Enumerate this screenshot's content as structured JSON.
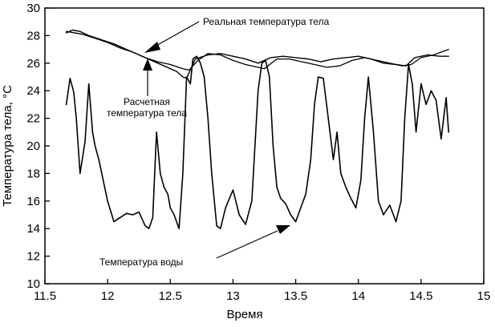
{
  "chart_data": {
    "type": "line",
    "xlabel": "Время",
    "ylabel": "Температура тела, °C",
    "xlim": [
      11.5,
      15
    ],
    "ylim": [
      10,
      30
    ],
    "xticks": [
      "11.5",
      "12",
      "12.5",
      "13",
      "13.5",
      "14",
      "14.5",
      "15"
    ],
    "yticks": [
      "10",
      "12",
      "14",
      "16",
      "18",
      "20",
      "22",
      "24",
      "26",
      "28",
      "30"
    ],
    "grid": false,
    "annotations": {
      "real": "Реальная температура тела",
      "calc_line1": "Расчетная",
      "calc_line2": "температура тела",
      "water": "Температура воды"
    },
    "series": [
      {
        "key": "real",
        "x": [
          11.67,
          11.72,
          11.78,
          11.85,
          11.95,
          12.05,
          12.15,
          12.25,
          12.3,
          12.35,
          12.4,
          12.45,
          12.55,
          12.6,
          12.63,
          12.7,
          12.8,
          12.9,
          13.0,
          13.1,
          13.2,
          13.3,
          13.4,
          13.5,
          13.6,
          13.7,
          13.8,
          13.9,
          14.0,
          14.1,
          14.2,
          14.3,
          14.38,
          14.45,
          14.55,
          14.65,
          14.72
        ],
        "y": [
          28.2,
          28.4,
          28.3,
          28.0,
          27.7,
          27.4,
          27.0,
          26.6,
          26.4,
          26.2,
          26.0,
          25.8,
          25.4,
          25.0,
          24.9,
          26.3,
          26.6,
          26.7,
          26.5,
          26.3,
          26.0,
          26.4,
          26.5,
          26.4,
          26.3,
          26.1,
          26.3,
          26.4,
          26.5,
          26.3,
          26.0,
          25.9,
          25.8,
          26.4,
          26.6,
          26.5,
          26.5
        ]
      },
      {
        "key": "calc",
        "x": [
          11.67,
          11.8,
          11.9,
          12.0,
          12.1,
          12.2,
          12.3,
          12.4,
          12.5,
          12.6,
          12.65,
          12.72,
          12.8,
          12.9,
          13.0,
          13.1,
          13.2,
          13.25,
          13.35,
          13.45,
          13.55,
          13.65,
          13.75,
          13.85,
          13.95,
          14.05,
          14.15,
          14.25,
          14.35,
          14.42,
          14.5,
          14.6,
          14.72
        ],
        "y": [
          28.3,
          28.1,
          27.8,
          27.5,
          27.1,
          26.8,
          26.4,
          26.1,
          25.9,
          25.6,
          25.5,
          26.2,
          26.7,
          26.6,
          26.2,
          25.9,
          25.7,
          25.6,
          26.3,
          26.3,
          26.1,
          25.9,
          25.7,
          25.8,
          26.2,
          26.4,
          26.2,
          26.0,
          25.8,
          25.9,
          26.4,
          26.6,
          27.0
        ]
      },
      {
        "key": "water",
        "x": [
          11.67,
          11.7,
          11.73,
          11.75,
          11.78,
          11.82,
          11.85,
          11.88,
          11.9,
          11.93,
          12.0,
          12.05,
          12.1,
          12.15,
          12.2,
          12.25,
          12.3,
          12.33,
          12.36,
          12.39,
          12.42,
          12.45,
          12.48,
          12.5,
          12.53,
          12.57,
          12.6,
          12.63,
          12.66,
          12.68,
          12.71,
          12.74,
          12.77,
          12.8,
          12.83,
          12.87,
          12.9,
          12.94,
          13.0,
          13.05,
          13.1,
          13.15,
          13.2,
          13.23,
          13.26,
          13.29,
          13.32,
          13.35,
          13.38,
          13.42,
          13.46,
          13.5,
          13.54,
          13.58,
          13.62,
          13.65,
          13.68,
          13.72,
          13.76,
          13.8,
          13.83,
          13.86,
          13.9,
          13.94,
          13.98,
          14.02,
          14.05,
          14.08,
          14.12,
          14.16,
          14.2,
          14.25,
          14.3,
          14.34,
          14.37,
          14.4,
          14.43,
          14.46,
          14.5,
          14.54,
          14.58,
          14.62,
          14.66,
          14.7,
          14.72
        ],
        "y": [
          23.0,
          24.9,
          23.9,
          22.0,
          18.0,
          20.3,
          24.5,
          21.0,
          20.0,
          19.0,
          16.0,
          14.5,
          14.8,
          15.1,
          15.0,
          15.2,
          14.2,
          14.0,
          14.8,
          21.0,
          18.0,
          17.0,
          16.5,
          15.5,
          15.0,
          14.0,
          18.0,
          25.0,
          24.5,
          26.3,
          26.5,
          26.0,
          25.0,
          22.0,
          18.0,
          14.2,
          14.0,
          15.5,
          16.8,
          15.0,
          14.3,
          16.0,
          24.0,
          26.0,
          26.2,
          25.0,
          20.0,
          17.0,
          16.2,
          15.8,
          15.0,
          14.5,
          15.5,
          16.5,
          19.0,
          23.0,
          25.0,
          24.9,
          22.0,
          19.0,
          21.0,
          18.0,
          17.0,
          16.2,
          15.5,
          17.5,
          22.0,
          25.0,
          21.0,
          16.0,
          15.0,
          15.7,
          14.5,
          16.0,
          22.0,
          25.9,
          24.5,
          21.0,
          24.5,
          23.0,
          24.0,
          23.3,
          20.5,
          23.5,
          21.0
        ]
      }
    ]
  }
}
